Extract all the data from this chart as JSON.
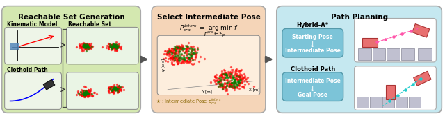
{
  "title_left": "Reachable Set Generation",
  "title_mid": "Select Intermediate Pose",
  "title_right": "Path Planning",
  "bg_left": "#d4e8b0",
  "bg_mid": "#f5d5b8",
  "bg_right": "#c5e8f0",
  "box1_label1": "Kinematic Model",
  "box1_label2": "Reachable Set",
  "box2_label": "Clothoid Path",
  "hybrid_title": "Hybrid-A*",
  "hybrid_box_color": "#7cc4d8",
  "hybrid_label1": "Starting Pose",
  "hybrid_label2": "Intermediate Pose",
  "clothoid_title": "Clothoid Path",
  "clothoid_label1": "Intermediate Pose",
  "clothoid_label2": "Goal Pose",
  "inner_box_color": "#a8d080",
  "fig_bg": "#ffffff"
}
